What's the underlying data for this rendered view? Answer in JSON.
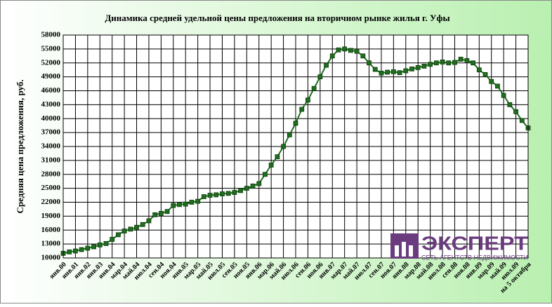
{
  "chart_data": {
    "type": "line",
    "title": "Динамика средней удельной цены предложения на вторичном рынке жилья г. Уфы",
    "y_label": "Средняя цена предложения, руб.",
    "categories": [
      "янв.00",
      null,
      "янв.01",
      null,
      "янв.02",
      null,
      "янв.03",
      null,
      "янв.04",
      null,
      "мар.04",
      null,
      "май.04",
      null,
      "июл.04",
      null,
      "сен.04",
      null,
      "ноя.04",
      null,
      "янв.05",
      null,
      "мар.05",
      null,
      "май.05",
      null,
      "июл.05",
      null,
      "сен.05",
      null,
      "ноя.05",
      null,
      "янв.06",
      null,
      "мар.06",
      null,
      "май.06",
      null,
      "июл.06",
      null,
      "сен.06",
      null,
      "ноя.06",
      null,
      "янв.07",
      null,
      "мар.07",
      null,
      "май.07",
      null,
      "июл.07",
      null,
      "сен.07",
      null,
      "ноя.07",
      null,
      "янв.08",
      null,
      "мар.08",
      null,
      "май.08",
      null,
      "июл.08",
      null,
      "сен.08",
      null,
      "ноя.08",
      null,
      "янв.09",
      null,
      "мар.09",
      null,
      "май.09",
      null,
      "июл.09",
      null,
      "на 5 октября"
    ],
    "series": [
      {
        "name": "Средняя цена",
        "color": "#1f6e1f",
        "values": [
          11000,
          11300,
          11500,
          11800,
          12100,
          12400,
          12800,
          13100,
          14000,
          15000,
          15800,
          16200,
          16600,
          17200,
          18000,
          19300,
          19600,
          20000,
          21300,
          21500,
          21600,
          22000,
          22200,
          23200,
          23500,
          23600,
          23800,
          23900,
          24100,
          24500,
          25000,
          25500,
          26000,
          28000,
          30000,
          31800,
          34000,
          36500,
          39000,
          42000,
          44000,
          46500,
          49000,
          51500,
          53500,
          54800,
          55000,
          54700,
          54500,
          53500,
          52000,
          50600,
          49800,
          50000,
          50100,
          49900,
          50300,
          50700,
          51000,
          51300,
          51700,
          52000,
          52200,
          52000,
          52100,
          52800,
          52500,
          52000,
          50500,
          49500,
          48000,
          47000,
          45000,
          43000,
          41500,
          39600,
          38000
        ]
      }
    ],
    "ylim": [
      10000,
      58000
    ],
    "yticks": [
      10000,
      13000,
      16000,
      19000,
      22000,
      25000,
      28000,
      31000,
      34000,
      37000,
      40000,
      43000,
      46000,
      49000,
      52000,
      55000,
      58000
    ],
    "grid": true
  },
  "logo": {
    "name": "ЭКСПЕРТ",
    "tagline": "СЕТЬ АГЕНТСТВ НЕДВИЖИМОСТИ"
  }
}
